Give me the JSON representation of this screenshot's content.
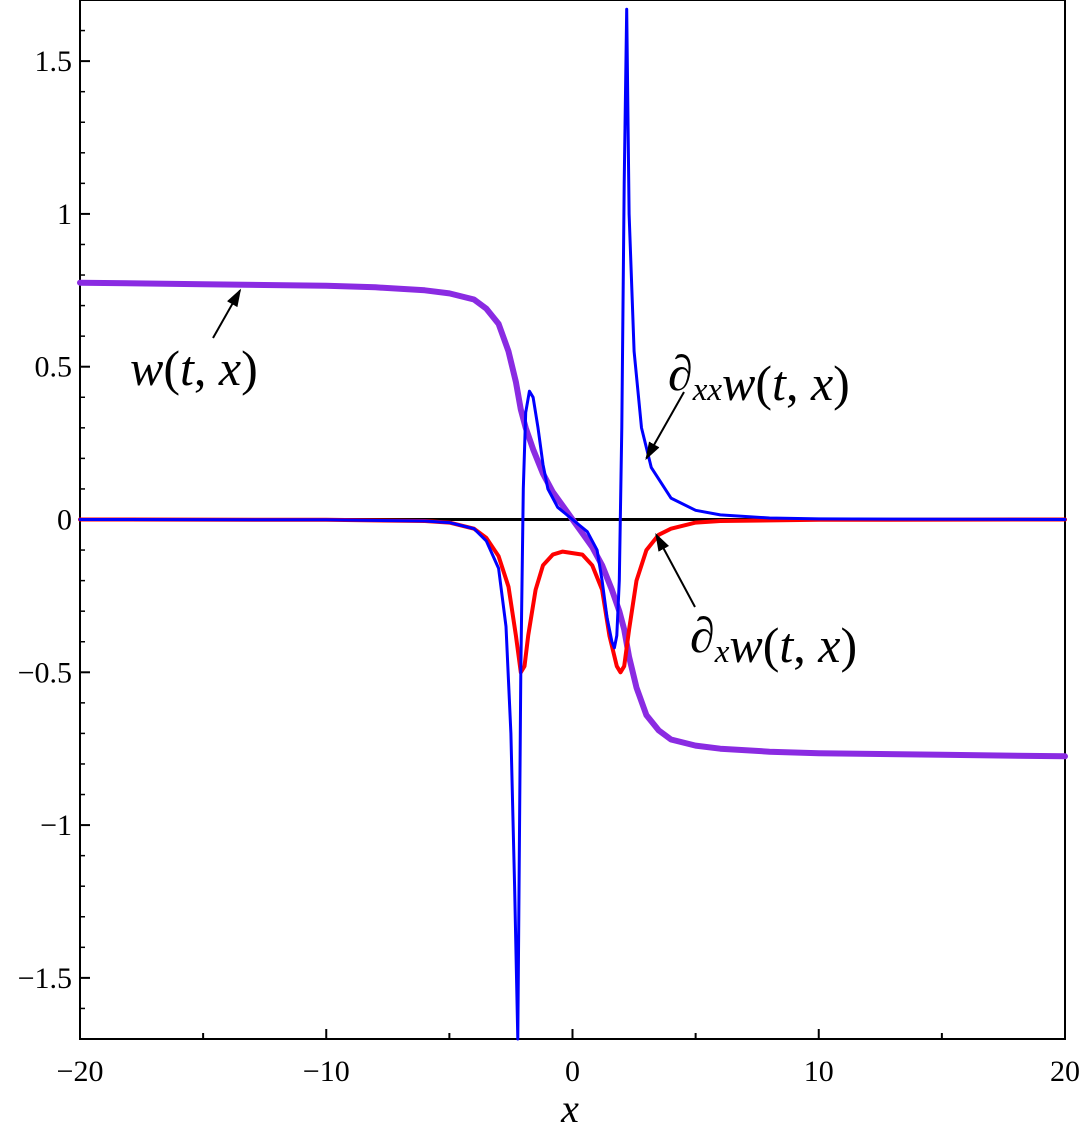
{
  "chart_data": {
    "type": "line",
    "xlabel": "x",
    "ylabel": "",
    "xlim": [
      -20,
      20
    ],
    "ylim": [
      -1.7,
      1.7
    ],
    "x_ticks": [
      -20,
      -10,
      0,
      10,
      20
    ],
    "x_tick_labels": [
      "−20",
      "−10",
      "0",
      "10",
      "20"
    ],
    "y_ticks": [
      -1.5,
      -1,
      -0.5,
      0,
      0.5,
      1,
      1.5
    ],
    "y_tick_labels": [
      "−1.5",
      "−1",
      "−0.5",
      "0",
      "0.5",
      "1",
      "1.5"
    ],
    "grid": false,
    "series": [
      {
        "name": "w(t, x)",
        "color": "#8a2be2",
        "x": [
          -20,
          -15,
          -10,
          -8,
          -6,
          -5,
          -4,
          -3.5,
          -3,
          -2.6,
          -2.3,
          -2.1,
          -1.9,
          -1.6,
          -1.2,
          -0.8,
          -0.4,
          0,
          0.4,
          0.8,
          1.2,
          1.6,
          1.9,
          2.1,
          2.3,
          2.6,
          3,
          3.5,
          4,
          5,
          6,
          8,
          10,
          15,
          20
        ],
        "y": [
          0.775,
          0.77,
          0.765,
          0.76,
          0.75,
          0.74,
          0.72,
          0.69,
          0.64,
          0.55,
          0.45,
          0.36,
          0.3,
          0.23,
          0.15,
          0.09,
          0.045,
          0,
          -0.045,
          -0.09,
          -0.15,
          -0.23,
          -0.3,
          -0.36,
          -0.45,
          -0.55,
          -0.64,
          -0.69,
          -0.72,
          -0.74,
          -0.75,
          -0.76,
          -0.765,
          -0.77,
          -0.775
        ]
      },
      {
        "name": "∂ₓ w(t, x)",
        "color": "#ff0000",
        "x": [
          -20,
          -10,
          -6,
          -5,
          -4,
          -3.5,
          -3,
          -2.6,
          -2.3,
          -2.1,
          -1.95,
          -1.8,
          -1.5,
          -1.2,
          -0.8,
          -0.4,
          0,
          0.4,
          0.8,
          1.2,
          1.5,
          1.8,
          1.95,
          2.1,
          2.3,
          2.6,
          3,
          3.5,
          4,
          5,
          6,
          10,
          20
        ],
        "y": [
          0,
          -0.001,
          -0.005,
          -0.01,
          -0.03,
          -0.06,
          -0.12,
          -0.22,
          -0.38,
          -0.5,
          -0.48,
          -0.38,
          -0.23,
          -0.15,
          -0.115,
          -0.105,
          -0.11,
          -0.115,
          -0.15,
          -0.23,
          -0.38,
          -0.48,
          -0.5,
          -0.48,
          -0.36,
          -0.2,
          -0.1,
          -0.05,
          -0.03,
          -0.01,
          -0.005,
          -0.001,
          0
        ]
      },
      {
        "name": "∂ₓₓ w(t, x)",
        "color": "#0000ff",
        "x": [
          -20,
          -10,
          -6,
          -5,
          -4,
          -3.5,
          -3,
          -2.7,
          -2.5,
          -2.35,
          -2.22,
          -2.1,
          -2,
          -1.9,
          -1.75,
          -1.6,
          -1.4,
          -1.2,
          -1,
          -0.6,
          -0.3,
          0,
          0.3,
          0.6,
          1,
          1.2,
          1.4,
          1.6,
          1.7,
          1.8,
          1.9,
          2,
          2.1,
          2.2,
          2.3,
          2.5,
          2.8,
          3.2,
          4,
          5,
          6,
          8,
          10,
          20
        ],
        "y": [
          0,
          -0.001,
          -0.005,
          -0.01,
          -0.03,
          -0.07,
          -0.16,
          -0.35,
          -0.7,
          -1.2,
          -1.7,
          -0.5,
          0.1,
          0.35,
          0.42,
          0.4,
          0.3,
          0.18,
          0.1,
          0.04,
          0.02,
          0,
          -0.02,
          -0.04,
          -0.1,
          -0.2,
          -0.32,
          -0.4,
          -0.42,
          -0.38,
          -0.2,
          0.3,
          1.1,
          1.67,
          1.0,
          0.55,
          0.3,
          0.17,
          0.07,
          0.03,
          0.015,
          0.005,
          0.002,
          0
        ]
      },
      {
        "name": "",
        "color": "#000000",
        "x": [
          -20,
          20
        ],
        "y": [
          0,
          0
        ]
      }
    ],
    "annotations": [
      {
        "text": "w(t, x)",
        "target_x": -13.5,
        "target_y": 0.75
      },
      {
        "text": "∂xx w(t, x)",
        "target_x": 3,
        "target_y": 0.2
      },
      {
        "text": "∂x w(t, x)",
        "target_x": 3.4,
        "target_y": -0.05
      }
    ]
  }
}
